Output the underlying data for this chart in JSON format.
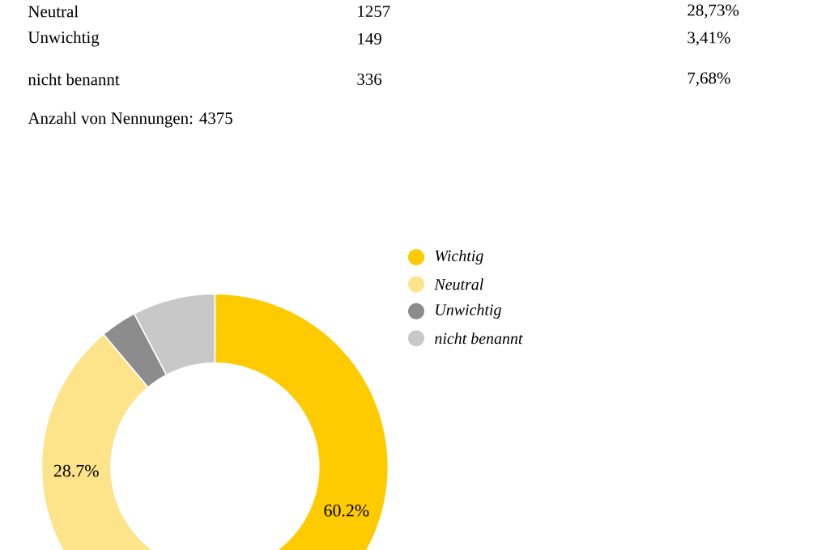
{
  "chart_data": {
    "type": "donut",
    "categories": [
      "Wichtig",
      "Neutral",
      "Unwichtig",
      "nicht benannt"
    ],
    "values": [
      60.2,
      28.7,
      3.4,
      7.7
    ],
    "colors": [
      "#fecb00",
      "#fde38a",
      "#8c8c8c",
      "#c8c8c8"
    ],
    "value_labels": [
      "60.2%",
      "28.7%",
      null,
      null
    ],
    "legend": "top right",
    "annotations": [
      "Neutral",
      "1257",
      "28,73%",
      "Unwichtig",
      "149",
      "3,41%",
      "nicht benannt",
      "336",
      "7,68%",
      "Anzahl von Nennungen: 4375"
    ]
  }
}
